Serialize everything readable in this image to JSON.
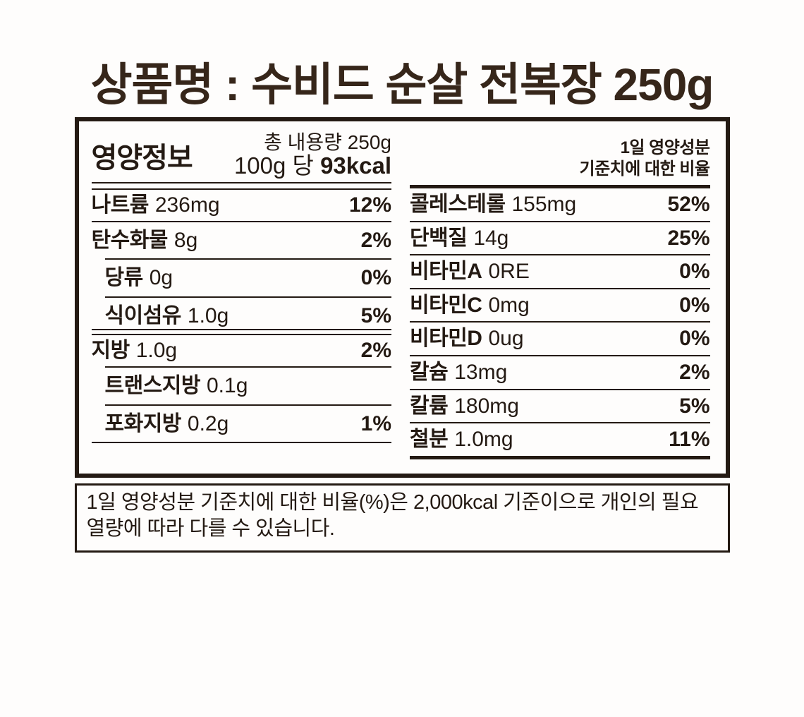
{
  "title": "상품명 : 수비드 순살 전복장 250g",
  "panel": {
    "heading": "영양정보",
    "serving_line1": "총 내용량 250g",
    "serving_line2_prefix": "100g 당 ",
    "serving_line2_kcal": "93kcal",
    "daily_value_note_line1": "1일 영양성분",
    "daily_value_note_line2": "기준치에 대한 비율"
  },
  "left_rows": [
    {
      "label": "나트륨",
      "amount": "236mg",
      "percent": "12%"
    },
    {
      "label": "탄수화물",
      "amount": "8g",
      "percent": "2%"
    },
    {
      "label": "당류",
      "amount": "0g",
      "percent": "0%"
    },
    {
      "label": "식이섬유",
      "amount": "1.0g",
      "percent": "5%"
    },
    {
      "label": "지방",
      "amount": "1.0g",
      "percent": "2%"
    },
    {
      "label": "트랜스지방",
      "amount": "0.1g",
      "percent": ""
    },
    {
      "label": "포화지방",
      "amount": "0.2g",
      "percent": "1%"
    }
  ],
  "right_rows": [
    {
      "label": "콜레스테롤",
      "amount": "155mg",
      "percent": "52%"
    },
    {
      "label": "단백질",
      "amount": "14g",
      "percent": "25%"
    },
    {
      "label": "비타민A",
      "amount": "0RE",
      "percent": "0%"
    },
    {
      "label": "비타민C",
      "amount": "0mg",
      "percent": "0%"
    },
    {
      "label": "비타민D",
      "amount": "0ug",
      "percent": "0%"
    },
    {
      "label": "칼슘",
      "amount": "13mg",
      "percent": "2%"
    },
    {
      "label": "칼륨",
      "amount": "180mg",
      "percent": "5%"
    },
    {
      "label": "철분",
      "amount": "1.0mg",
      "percent": "11%"
    }
  ],
  "footnote": "1일 영양성분 기준치에 대한 비율(%)은 2,000kcal 기준이으로 개인의 필요 열량에 따라 다를 수 있습니다.",
  "colors": {
    "ink": "#241a13",
    "title_ink": "#36261a",
    "background": "#fefdfc"
  }
}
